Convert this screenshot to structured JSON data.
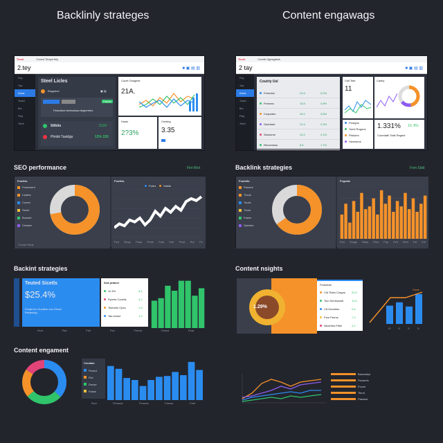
{
  "headings": {
    "left": "Backlinly strateges",
    "right": "Content engawags"
  },
  "win1": {
    "brand": "Tocol",
    "tab": "Coced Tinayd fely",
    "title": "2.tey",
    "sidebar": [
      "Fioy",
      "Tow",
      "Doma",
      "Tooed",
      "Bra",
      "Fiisy",
      "Teerh"
    ],
    "panel": {
      "title": "Steel Licles",
      "sub": "Ewgwerd",
      "btn": "Fiseds",
      "desc": "Ftdscliwel teefsalswa ttegieretes",
      "metric1": "Stlbits",
      "val1": "5134",
      "metric2": "Plmbit Tastdgs",
      "val2": "13% 155"
    },
    "chart1": {
      "title": "Cucet Onsgese",
      "value": "21A."
    },
    "mini1": {
      "title": "Hoels",
      "value": "2?3%"
    },
    "mini2": {
      "title": "Cecting",
      "value": "3.35"
    }
  },
  "win2": {
    "brand": "Tocol",
    "tab": "Coedk Ogesgdwls",
    "title": "2 tay",
    "table_title": "Coutrly Usl",
    "rows": [
      {
        "name": "Feremist",
        "a": "24.5",
        "b": "5.2%"
      },
      {
        "name": "Fenrnes",
        "a": "18.5",
        "b": "4.9%"
      },
      {
        "name": "Coopeten",
        "a": "16.1",
        "b": "3.5%"
      },
      {
        "name": "Geerlede",
        "a": "12.4",
        "b": "2.9%"
      },
      {
        "name": "Sesnome",
        "a": "10.2",
        "b": "2.1%"
      },
      {
        "name": "Rercemess",
        "a": "8.6",
        "b": "1.7%"
      }
    ],
    "chart1": {
      "title": "Cell Tete",
      "value": "11"
    },
    "gauge_title": "Casby",
    "list": [
      "Ficsigne",
      "Toeel Roguns",
      "Fitsiclne",
      "Hivestone"
    ],
    "mini": {
      "value": "1.331%",
      "sub": "Cunedafh Tatls Regest",
      "change": "10, 8%"
    }
  },
  "seo": {
    "title": "SEO performance",
    "link": "Fint Rlrd",
    "legend_title": "Foofets",
    "legend": [
      "Fomnwerd",
      "Lsatles",
      "Comer",
      "Seeer",
      "Bossed",
      "Cestaer"
    ],
    "line_title": "Foofets",
    "line_legend": [
      "Forex",
      "Hatdo"
    ],
    "line_values": [
      30,
      34,
      32,
      38,
      36,
      40,
      33,
      38,
      47,
      42,
      50,
      46,
      52,
      48,
      57,
      60,
      58,
      62
    ],
    "x_labels": [
      "Fed",
      "Reqs",
      "Feas",
      "Prels",
      "Fols",
      "Fee",
      "Prod",
      "Roi",
      "Fe"
    ],
    "donut_value": 72,
    "footer": "Fcmer Peds"
  },
  "backlink2": {
    "title": "Backlink strategies",
    "link": "Fom Sldd",
    "legend_title": "Fooletts",
    "legend": [
      "Parsers",
      "Tlouts",
      "Toues",
      "Tresd",
      "Fasee",
      "Spestes"
    ],
    "bars_title": "Fegeate",
    "bars": [
      45,
      65,
      30,
      70,
      50,
      85,
      55,
      60,
      75,
      45,
      90,
      65,
      80,
      50,
      70,
      60,
      85,
      55,
      75,
      50,
      65,
      80
    ],
    "donut_value": 65,
    "x_labels": [
      "Fed",
      "Fesgs",
      "Reqs",
      "Ptes",
      "Fep",
      "Fell",
      "Feet",
      "Fel",
      "Fel"
    ]
  },
  "backlint": {
    "title": "Backint strategies",
    "card_title": "Teuted Sicetls",
    "card_value": "$25.4%",
    "card_sub": "Fenjet lcc Ouedise ocs Clesel Pesteshig",
    "list_title": "Sed prtaner",
    "list": [
      {
        "name": "11.3%",
        "val": "8.4"
      },
      {
        "name": "Fiperts Cocelis",
        "val": "4.4"
      },
      {
        "name": "Teeloeto Cpes",
        "val": "2.6"
      },
      {
        "name": "Tae.ctome",
        "val": "1.4"
      }
    ],
    "bars": [
      55,
      60,
      85,
      75,
      95,
      95,
      65,
      80
    ],
    "x_labels": [
      "Fect",
      "Fed",
      "Fell",
      "Fed",
      "Feerm",
      "Fesed",
      "Feat"
    ]
  },
  "insights": {
    "title": "Content nsights",
    "donut_value": "1.29%",
    "list_title": "Fedohtds",
    "list": [
      {
        "name": "Cllt Ttdes Cregns",
        "val": "20.5"
      },
      {
        "name": "Tom Senrloaarb",
        "val": "10.5"
      },
      {
        "name": "Ctt Deorbles",
        "val": "9.8"
      },
      {
        "name": "Fem Prems",
        "val": "7.3"
      },
      {
        "name": "Neoehes Fitbe",
        "val": "4.2"
      }
    ],
    "bars": [
      22,
      26,
      21,
      36
    ],
    "x_labels": [
      "Fl",
      "S",
      "S",
      "S"
    ],
    "line_label": "Crest"
  },
  "engagement": {
    "title": "Content engament",
    "legend_title": "Cendals",
    "legend": [
      "Finsed",
      "Fiol",
      "Dnuse",
      "Fosse"
    ],
    "bars": [
      85,
      78,
      55,
      50,
      35,
      50,
      58,
      60,
      70,
      62,
      95,
      75
    ],
    "x_labels": [
      "Fiod",
      "Flnnesd",
      "Feonoe",
      "Fesme",
      "Feet"
    ],
    "line_series": [
      "Baocsetpt",
      "Peoserts",
      "Fouve",
      "Tiend",
      "Patcese"
    ],
    "colors": {
      "blue": "#2b8cf0",
      "orange": "#f5922a",
      "green": "#30c46b",
      "purple": "#8e5cf0"
    }
  }
}
